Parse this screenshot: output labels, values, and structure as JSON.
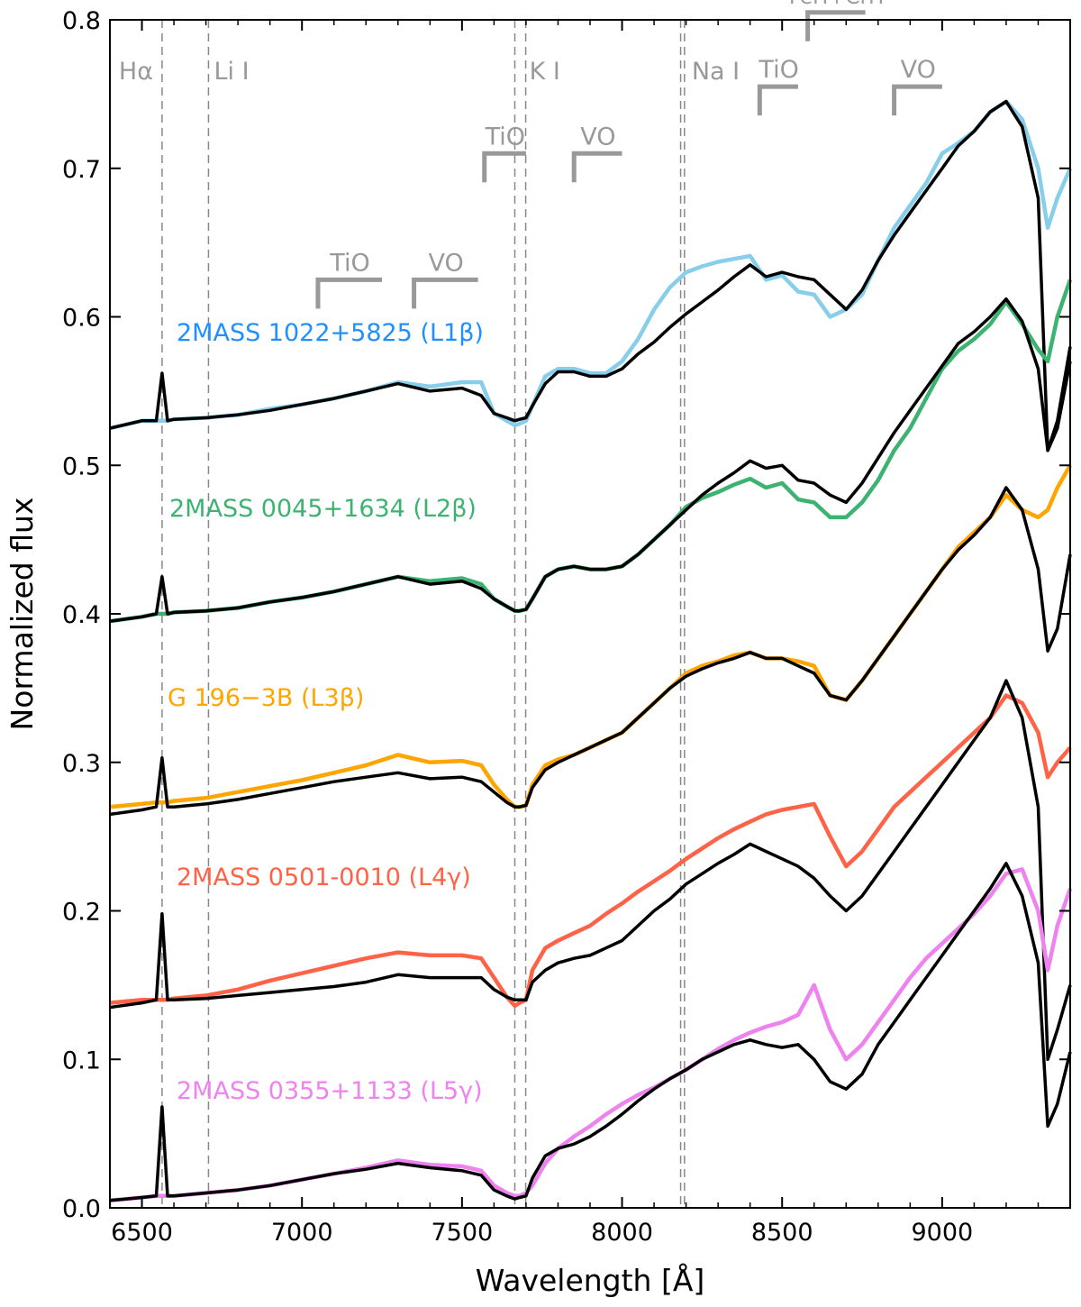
{
  "chart_data": {
    "type": "line",
    "xlabel": "Wavelength [Å]",
    "ylabel": "Normalized flux",
    "xlim": [
      6400,
      9400
    ],
    "ylim": [
      0.0,
      0.8
    ],
    "xticks": [
      6500,
      7000,
      7500,
      8000,
      8500,
      9000
    ],
    "xtick_labels": [
      "6500",
      "7000",
      "7500",
      "8000",
      "8500",
      "9000"
    ],
    "yticks": [
      0.0,
      0.1,
      0.2,
      0.3,
      0.4,
      0.5,
      0.6,
      0.7,
      0.8
    ],
    "ytick_labels": [
      "0.0",
      "0.1",
      "0.2",
      "0.3",
      "0.4",
      "0.5",
      "0.6",
      "0.7",
      "0.8"
    ],
    "grid": false,
    "legend": "none",
    "feature_lines": [
      {
        "name": "Halpha",
        "label": "Hα",
        "x": [
          6563
        ]
      },
      {
        "name": "LiI",
        "label": "Li I",
        "x": [
          6708
        ]
      },
      {
        "name": "KI",
        "label": "K I",
        "x": [
          7665,
          7699
        ]
      },
      {
        "name": "NaI",
        "label": "Na I",
        "x": [
          8183,
          8195
        ]
      }
    ],
    "bands": [
      {
        "label": "TiO",
        "x_start": 7050,
        "x_end": 7250,
        "y": 0.625
      },
      {
        "label": "VO",
        "x_start": 7350,
        "x_end": 7550,
        "y": 0.625
      },
      {
        "label": "TiO",
        "x_start": 7570,
        "x_end": 7700,
        "y": 0.71
      },
      {
        "label": "VO",
        "x_start": 7850,
        "x_end": 8000,
        "y": 0.71
      },
      {
        "label": "TiO",
        "x_start": 8430,
        "x_end": 8550,
        "y": 0.755
      },
      {
        "label": "FeH+CrH",
        "x_start": 8580,
        "x_end": 8760,
        "y": 0.805
      },
      {
        "label": "VO",
        "x_start": 8850,
        "x_end": 9000,
        "y": 0.755
      }
    ],
    "series": [
      {
        "name": "2MASS 1022+5825 (L1β)",
        "color": "#87ceeb",
        "label_color": "#1e90ff",
        "comparison_color": "#000000",
        "x": [
          6400,
          6500,
          6545,
          6563,
          6580,
          6600,
          6700,
          6800,
          6900,
          7000,
          7100,
          7200,
          7300,
          7400,
          7500,
          7560,
          7600,
          7640,
          7665,
          7680,
          7700,
          7720,
          7760,
          7800,
          7850,
          7900,
          7950,
          8000,
          8050,
          8100,
          8150,
          8200,
          8250,
          8300,
          8350,
          8400,
          8450,
          8500,
          8550,
          8600,
          8650,
          8700,
          8750,
          8800,
          8850,
          8900,
          8950,
          9000,
          9050,
          9100,
          9150,
          9200,
          9250,
          9300,
          9330,
          9360,
          9400
        ],
        "values": [
          0.525,
          0.53,
          0.53,
          0.53,
          0.53,
          0.531,
          0.532,
          0.534,
          0.538,
          0.541,
          0.545,
          0.55,
          0.556,
          0.553,
          0.556,
          0.556,
          0.535,
          0.53,
          0.527,
          0.528,
          0.53,
          0.54,
          0.56,
          0.565,
          0.565,
          0.562,
          0.562,
          0.57,
          0.585,
          0.605,
          0.62,
          0.63,
          0.634,
          0.637,
          0.639,
          0.641,
          0.625,
          0.628,
          0.617,
          0.615,
          0.6,
          0.605,
          0.615,
          0.638,
          0.66,
          0.675,
          0.69,
          0.71,
          0.717,
          0.725,
          0.738,
          0.745,
          0.733,
          0.7,
          0.66,
          0.68,
          0.7
        ],
        "comparison_values": [
          0.525,
          0.53,
          0.53,
          0.562,
          0.53,
          0.531,
          0.532,
          0.534,
          0.537,
          0.541,
          0.545,
          0.55,
          0.555,
          0.55,
          0.552,
          0.547,
          0.535,
          0.532,
          0.53,
          0.531,
          0.532,
          0.54,
          0.555,
          0.563,
          0.563,
          0.56,
          0.56,
          0.565,
          0.575,
          0.583,
          0.593,
          0.602,
          0.61,
          0.618,
          0.627,
          0.635,
          0.627,
          0.63,
          0.627,
          0.625,
          0.615,
          0.605,
          0.618,
          0.638,
          0.655,
          0.67,
          0.685,
          0.7,
          0.715,
          0.725,
          0.738,
          0.745,
          0.728,
          0.68,
          0.51,
          0.53,
          0.58
        ]
      },
      {
        "name": "2MASS 0045+1634 (L2β)",
        "color": "#3cb371",
        "label_color": "#3cb371",
        "comparison_color": "#000000",
        "x": [
          6400,
          6500,
          6545,
          6563,
          6580,
          6600,
          6700,
          6800,
          6900,
          7000,
          7100,
          7200,
          7300,
          7400,
          7500,
          7560,
          7600,
          7640,
          7665,
          7680,
          7700,
          7720,
          7760,
          7800,
          7850,
          7900,
          7950,
          8000,
          8050,
          8100,
          8150,
          8200,
          8250,
          8300,
          8350,
          8400,
          8450,
          8500,
          8550,
          8600,
          8650,
          8700,
          8750,
          8800,
          8850,
          8900,
          8950,
          9000,
          9050,
          9100,
          9150,
          9200,
          9250,
          9300,
          9330,
          9360,
          9400
        ],
        "values": [
          0.395,
          0.398,
          0.4,
          0.4,
          0.4,
          0.401,
          0.402,
          0.404,
          0.408,
          0.411,
          0.415,
          0.42,
          0.425,
          0.422,
          0.424,
          0.42,
          0.41,
          0.405,
          0.402,
          0.402,
          0.403,
          0.41,
          0.425,
          0.43,
          0.432,
          0.43,
          0.43,
          0.432,
          0.44,
          0.45,
          0.46,
          0.472,
          0.478,
          0.482,
          0.487,
          0.491,
          0.485,
          0.488,
          0.477,
          0.475,
          0.465,
          0.465,
          0.475,
          0.49,
          0.51,
          0.525,
          0.545,
          0.565,
          0.577,
          0.585,
          0.595,
          0.61,
          0.595,
          0.578,
          0.57,
          0.6,
          0.625
        ],
        "comparison_values": [
          0.395,
          0.398,
          0.4,
          0.425,
          0.4,
          0.401,
          0.402,
          0.404,
          0.408,
          0.411,
          0.415,
          0.42,
          0.425,
          0.42,
          0.422,
          0.417,
          0.41,
          0.405,
          0.402,
          0.402,
          0.403,
          0.41,
          0.425,
          0.43,
          0.432,
          0.43,
          0.43,
          0.432,
          0.44,
          0.45,
          0.46,
          0.47,
          0.48,
          0.488,
          0.495,
          0.503,
          0.498,
          0.5,
          0.49,
          0.488,
          0.48,
          0.475,
          0.488,
          0.505,
          0.522,
          0.537,
          0.552,
          0.567,
          0.582,
          0.59,
          0.6,
          0.612,
          0.597,
          0.565,
          0.51,
          0.525,
          0.57
        ]
      },
      {
        "name": "G 196−3B (L3β)",
        "color": "#ffa500",
        "label_color": "#ffa500",
        "comparison_color": "#000000",
        "x": [
          6400,
          6500,
          6545,
          6563,
          6580,
          6600,
          6700,
          6800,
          6900,
          7000,
          7100,
          7200,
          7300,
          7400,
          7500,
          7560,
          7600,
          7640,
          7665,
          7680,
          7700,
          7720,
          7760,
          7800,
          7850,
          7900,
          7950,
          8000,
          8050,
          8100,
          8150,
          8200,
          8250,
          8300,
          8350,
          8400,
          8450,
          8500,
          8550,
          8600,
          8650,
          8700,
          8750,
          8800,
          8850,
          8900,
          8950,
          9000,
          9050,
          9100,
          9150,
          9200,
          9250,
          9300,
          9330,
          9360,
          9400
        ],
        "values": [
          0.27,
          0.272,
          0.273,
          0.273,
          0.273,
          0.274,
          0.276,
          0.28,
          0.284,
          0.288,
          0.293,
          0.298,
          0.305,
          0.3,
          0.301,
          0.298,
          0.285,
          0.275,
          0.27,
          0.27,
          0.271,
          0.285,
          0.298,
          0.302,
          0.305,
          0.31,
          0.315,
          0.32,
          0.33,
          0.34,
          0.35,
          0.36,
          0.365,
          0.368,
          0.372,
          0.374,
          0.37,
          0.37,
          0.368,
          0.365,
          0.345,
          0.342,
          0.355,
          0.37,
          0.385,
          0.4,
          0.415,
          0.43,
          0.445,
          0.455,
          0.465,
          0.48,
          0.47,
          0.465,
          0.47,
          0.485,
          0.5
        ],
        "comparison_values": [
          0.265,
          0.268,
          0.27,
          0.303,
          0.27,
          0.27,
          0.272,
          0.275,
          0.279,
          0.283,
          0.287,
          0.29,
          0.293,
          0.289,
          0.29,
          0.287,
          0.28,
          0.273,
          0.27,
          0.27,
          0.271,
          0.283,
          0.295,
          0.3,
          0.305,
          0.31,
          0.315,
          0.32,
          0.33,
          0.34,
          0.35,
          0.358,
          0.363,
          0.367,
          0.37,
          0.374,
          0.37,
          0.37,
          0.365,
          0.36,
          0.345,
          0.342,
          0.355,
          0.37,
          0.385,
          0.4,
          0.415,
          0.43,
          0.443,
          0.453,
          0.465,
          0.485,
          0.47,
          0.43,
          0.375,
          0.39,
          0.44
        ]
      },
      {
        "name": "2MASS 0501-0010 (L4γ)",
        "color": "#ff6347",
        "label_color": "#ff6347",
        "comparison_color": "#000000",
        "x": [
          6400,
          6500,
          6545,
          6563,
          6580,
          6600,
          6700,
          6800,
          6900,
          7000,
          7100,
          7200,
          7300,
          7400,
          7500,
          7560,
          7600,
          7640,
          7665,
          7680,
          7700,
          7720,
          7760,
          7800,
          7850,
          7900,
          7950,
          8000,
          8050,
          8100,
          8150,
          8200,
          8250,
          8300,
          8350,
          8400,
          8450,
          8500,
          8550,
          8600,
          8650,
          8700,
          8750,
          8800,
          8850,
          8900,
          8950,
          9000,
          9050,
          9100,
          9150,
          9200,
          9250,
          9300,
          9330,
          9360,
          9400
        ],
        "values": [
          0.138,
          0.14,
          0.14,
          0.14,
          0.14,
          0.141,
          0.143,
          0.147,
          0.153,
          0.158,
          0.163,
          0.168,
          0.172,
          0.17,
          0.17,
          0.168,
          0.155,
          0.142,
          0.136,
          0.138,
          0.14,
          0.16,
          0.175,
          0.18,
          0.185,
          0.19,
          0.198,
          0.205,
          0.213,
          0.22,
          0.227,
          0.235,
          0.242,
          0.249,
          0.255,
          0.26,
          0.265,
          0.268,
          0.27,
          0.272,
          0.25,
          0.23,
          0.24,
          0.255,
          0.27,
          0.28,
          0.29,
          0.3,
          0.31,
          0.32,
          0.33,
          0.345,
          0.34,
          0.32,
          0.29,
          0.3,
          0.31
        ],
        "comparison_values": [
          0.135,
          0.138,
          0.14,
          0.198,
          0.14,
          0.14,
          0.141,
          0.143,
          0.145,
          0.147,
          0.149,
          0.152,
          0.157,
          0.155,
          0.155,
          0.155,
          0.147,
          0.142,
          0.14,
          0.14,
          0.14,
          0.152,
          0.16,
          0.165,
          0.168,
          0.17,
          0.175,
          0.18,
          0.19,
          0.2,
          0.208,
          0.218,
          0.225,
          0.232,
          0.238,
          0.245,
          0.24,
          0.235,
          0.23,
          0.222,
          0.21,
          0.2,
          0.21,
          0.225,
          0.24,
          0.255,
          0.27,
          0.285,
          0.3,
          0.315,
          0.33,
          0.355,
          0.33,
          0.27,
          0.1,
          0.12,
          0.15
        ]
      },
      {
        "name": "2MASS 0355+1133 (L5γ)",
        "color": "#ee82ee",
        "label_color": "#ee82ee",
        "comparison_color": "#000000",
        "x": [
          6400,
          6500,
          6545,
          6563,
          6580,
          6600,
          6700,
          6800,
          6900,
          7000,
          7100,
          7200,
          7300,
          7400,
          7500,
          7560,
          7600,
          7640,
          7665,
          7680,
          7700,
          7720,
          7760,
          7800,
          7850,
          7900,
          7950,
          8000,
          8050,
          8100,
          8150,
          8200,
          8250,
          8300,
          8350,
          8400,
          8450,
          8500,
          8550,
          8600,
          8650,
          8700,
          8750,
          8800,
          8850,
          8900,
          8950,
          9000,
          9050,
          9100,
          9150,
          9200,
          9250,
          9300,
          9330,
          9360,
          9400
        ],
        "values": [
          0.005,
          0.007,
          0.008,
          0.008,
          0.008,
          0.008,
          0.01,
          0.012,
          0.015,
          0.019,
          0.023,
          0.027,
          0.032,
          0.029,
          0.028,
          0.025,
          0.015,
          0.01,
          0.008,
          0.008,
          0.01,
          0.015,
          0.03,
          0.04,
          0.048,
          0.055,
          0.063,
          0.07,
          0.076,
          0.081,
          0.087,
          0.093,
          0.1,
          0.107,
          0.113,
          0.118,
          0.122,
          0.125,
          0.13,
          0.15,
          0.12,
          0.1,
          0.11,
          0.125,
          0.14,
          0.155,
          0.168,
          0.178,
          0.188,
          0.198,
          0.21,
          0.225,
          0.228,
          0.2,
          0.16,
          0.19,
          0.215
        ],
        "comparison_values": [
          0.005,
          0.007,
          0.008,
          0.068,
          0.008,
          0.008,
          0.01,
          0.012,
          0.015,
          0.019,
          0.023,
          0.026,
          0.03,
          0.027,
          0.025,
          0.022,
          0.012,
          0.008,
          0.006,
          0.007,
          0.008,
          0.02,
          0.035,
          0.04,
          0.043,
          0.048,
          0.055,
          0.063,
          0.072,
          0.08,
          0.087,
          0.093,
          0.1,
          0.105,
          0.11,
          0.113,
          0.11,
          0.108,
          0.11,
          0.1,
          0.085,
          0.08,
          0.09,
          0.11,
          0.125,
          0.14,
          0.155,
          0.17,
          0.185,
          0.2,
          0.215,
          0.232,
          0.21,
          0.165,
          0.055,
          0.07,
          0.105
        ]
      }
    ]
  }
}
